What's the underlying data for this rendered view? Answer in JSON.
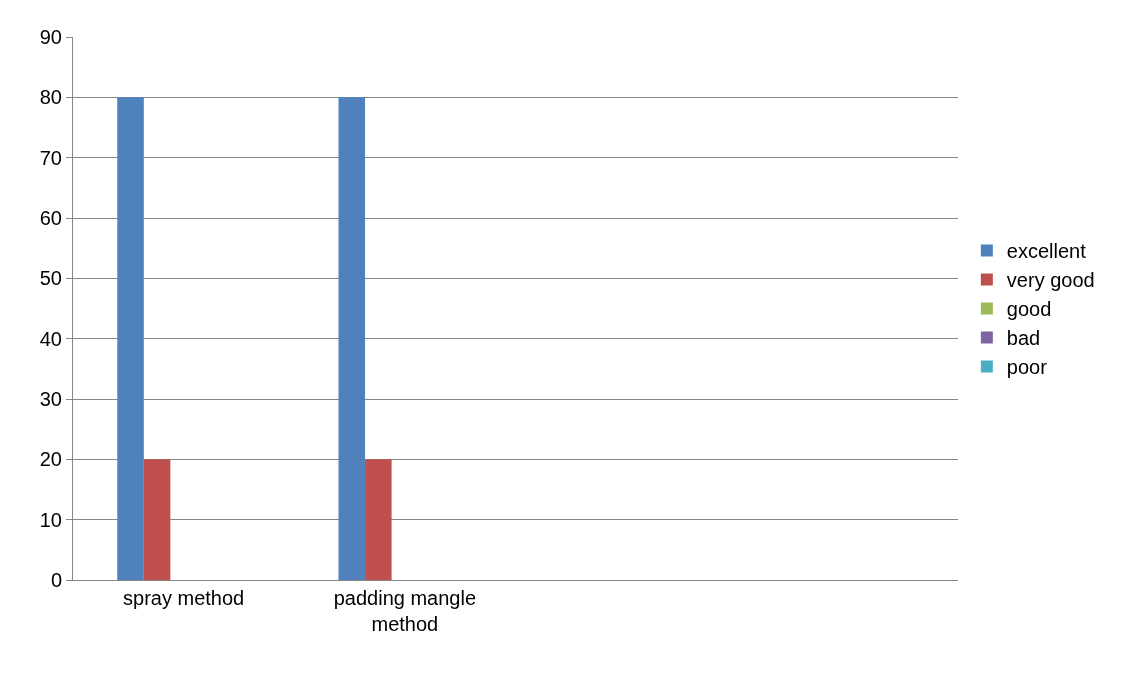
{
  "chart_data": {
    "type": "bar",
    "categories": [
      "spray method",
      "padding mangle method",
      null,
      null
    ],
    "series": [
      {
        "name": "excellent",
        "color": "#4f81bd",
        "values": [
          80,
          80,
          null,
          null
        ]
      },
      {
        "name": "very good",
        "color": "#c0504d",
        "values": [
          20,
          20,
          null,
          null
        ]
      },
      {
        "name": "good",
        "color": "#9bbb59",
        "values": [
          0,
          0,
          null,
          null
        ]
      },
      {
        "name": "bad",
        "color": "#8064a2",
        "values": [
          0,
          0,
          null,
          null
        ]
      },
      {
        "name": "poor",
        "color": "#4bacc6",
        "values": [
          0,
          0,
          null,
          null
        ]
      }
    ],
    "ylim": [
      0,
      90
    ],
    "yticks": [
      0,
      10,
      20,
      30,
      40,
      50,
      60,
      70,
      80,
      90
    ],
    "grid": "y",
    "legend": "right"
  }
}
